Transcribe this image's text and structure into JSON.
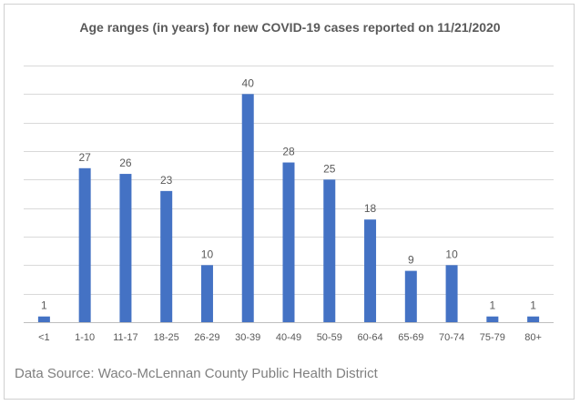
{
  "chart_data": {
    "type": "bar",
    "title": "Age ranges (in years) for new COVID-19 cases reported on 11/21/2020",
    "categories": [
      "<1",
      "1-10",
      "11-17",
      "18-25",
      "26-29",
      "30-39",
      "40-49",
      "50-59",
      "60-64",
      "65-69",
      "70-74",
      "75-79",
      "80+"
    ],
    "values": [
      1,
      27,
      26,
      23,
      10,
      40,
      28,
      25,
      18,
      9,
      10,
      1,
      1
    ],
    "xlabel": "",
    "ylabel": "",
    "ylim": [
      0,
      45
    ],
    "ytick_step": 5,
    "grid": true,
    "legend": "none",
    "bar_color": "#4472c4"
  },
  "source_text": "Data Source: Waco-McLennan County Public Health District"
}
